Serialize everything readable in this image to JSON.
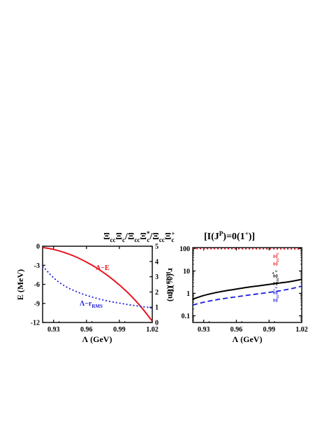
{
  "figure": {
    "title": "Ξ_cc Ξ_c / Ξ_cc Ξ_c^* / Ξ_cc Ξ_c^+   [I(J^P)=0(1^+)]"
  },
  "chart_data": [
    {
      "type": "line",
      "panel": "left",
      "xlabel": "Λ (GeV)",
      "ylabel": "E (MeV)",
      "ylabel_right": "r_RMS (fm)",
      "xlim": [
        0.92,
        1.02
      ],
      "ylim": [
        -12,
        0
      ],
      "ylim_right": [
        0,
        5
      ],
      "x_ticks": [
        "0.93",
        "0.96",
        "0.99",
        "1.02"
      ],
      "y_ticks": [
        "0",
        "-3",
        "-6",
        "-9",
        "-12"
      ],
      "y_ticks_right": [
        "0",
        "1",
        "2",
        "3",
        "4",
        "5"
      ],
      "grid": false,
      "series": [
        {
          "name": "Λ−E",
          "axis": "left",
          "color": "#e8141e",
          "style": "solid",
          "x": [
            0.92,
            0.93,
            0.94,
            0.95,
            0.96,
            0.97,
            0.98,
            0.99,
            1.0,
            1.01,
            1.02
          ],
          "y": [
            -0.2,
            -0.5,
            -1.0,
            -1.65,
            -2.5,
            -3.5,
            -4.7,
            -6.1,
            -7.7,
            -9.6,
            -11.8
          ]
        },
        {
          "name": "Λ−r_RMS",
          "axis": "right",
          "color": "#1a1adb",
          "style": "dotted",
          "x": [
            0.92,
            0.93,
            0.94,
            0.95,
            0.96,
            0.97,
            0.98,
            0.99,
            1.0,
            1.01,
            1.02
          ],
          "y": [
            3.7,
            2.93,
            2.4,
            2.05,
            1.78,
            1.57,
            1.4,
            1.27,
            1.15,
            1.05,
            0.95
          ]
        }
      ]
    },
    {
      "type": "line",
      "panel": "right",
      "xlabel": "Λ (GeV)",
      "ylabel": "P (%)",
      "xlim": [
        0.92,
        1.02
      ],
      "ylim": [
        0.05,
        110
      ],
      "yscale": "log",
      "x_ticks": [
        "0.93",
        "0.96",
        "0.99",
        "1.02"
      ],
      "y_ticks": [
        "0.1",
        "1",
        "10",
        "100"
      ],
      "grid": false,
      "series": [
        {
          "name": "Ξ_cc Ξ_c",
          "color": "#e8141e",
          "style": "dotted",
          "x": [
            0.92,
            0.94,
            0.96,
            0.98,
            1.0,
            1.02
          ],
          "y": [
            98.9,
            98.3,
            97.7,
            97.0,
            96.3,
            95.6
          ]
        },
        {
          "name": "Ξ_cc Ξ_c^*",
          "color": "#000000",
          "style": "solid",
          "x": [
            0.92,
            0.93,
            0.94,
            0.95,
            0.96,
            0.97,
            0.98,
            0.99,
            1.0,
            1.01,
            1.02
          ],
          "y": [
            0.55,
            0.8,
            1.05,
            1.3,
            1.55,
            1.85,
            2.15,
            2.5,
            2.9,
            3.4,
            4.2
          ]
        },
        {
          "name": "Ξ_cc Ξ_c^+",
          "color": "#1a1adb",
          "style": "dashed",
          "x": [
            0.92,
            0.93,
            0.94,
            0.95,
            0.96,
            0.97,
            0.98,
            0.99,
            1.0,
            1.01,
            1.02
          ],
          "y": [
            0.3,
            0.4,
            0.5,
            0.6,
            0.7,
            0.82,
            0.95,
            1.1,
            1.3,
            1.6,
            2.1
          ]
        }
      ]
    }
  ]
}
